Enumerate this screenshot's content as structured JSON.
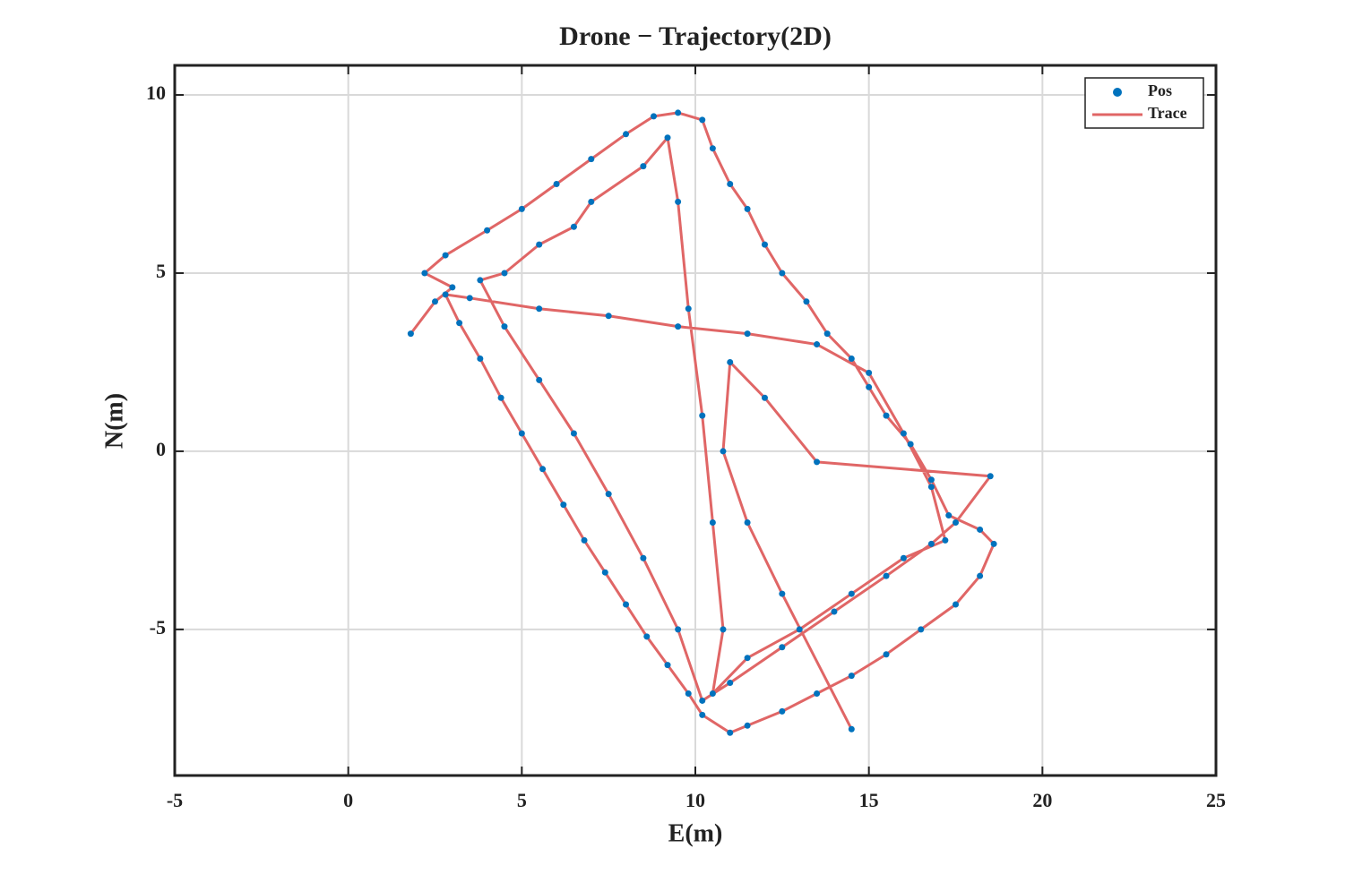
{
  "chart_data": {
    "type": "scatter",
    "title": "Drone − Trajectory(2D)",
    "x_label": "E(m)",
    "y_label": "N(m)",
    "xlim": [
      -5,
      25
    ],
    "ylim": [
      -9.1,
      10.83
    ],
    "xticks": [
      -5,
      0,
      5,
      10,
      15,
      20,
      25
    ],
    "yticks": [
      -5,
      0,
      5,
      10
    ],
    "grid": true,
    "legend": "upper right",
    "series": [
      {
        "name": "Pos",
        "color": "#0072bd"
      },
      {
        "name": "Trace",
        "color": "#e06666"
      }
    ],
    "x": [
      1.8,
      2.5,
      3.0,
      2.2,
      2.8,
      4.0,
      5.0,
      6.0,
      7.0,
      8.0,
      8.8,
      9.5,
      10.2,
      10.5,
      11.0,
      11.5,
      12.0,
      12.5,
      13.2,
      13.8,
      14.5,
      15.0,
      15.5,
      16.2,
      16.8,
      17.3,
      18.2,
      18.6,
      18.2,
      17.5,
      16.5,
      15.5,
      14.5,
      13.5,
      12.5,
      11.5,
      11.0,
      10.2,
      9.8,
      9.2,
      8.6,
      8.0,
      7.4,
      6.8,
      6.2,
      5.6,
      5.0,
      4.4,
      3.8,
      3.2,
      2.8,
      3.5,
      5.5,
      7.5,
      9.5,
      11.5,
      13.5,
      15.0,
      16.0,
      16.8,
      17.2,
      16.0,
      14.5,
      13.0,
      11.5,
      10.5,
      10.8,
      10.5,
      10.2,
      9.8,
      9.5,
      9.2,
      8.5,
      7.0,
      6.5,
      5.5,
      4.5,
      3.8,
      4.5,
      5.5,
      6.5,
      7.5,
      8.5,
      9.5,
      10.2,
      11.0,
      12.5,
      14.0,
      15.5,
      16.8,
      17.5,
      18.5,
      13.5,
      12.0,
      11.0,
      10.8,
      11.5,
      12.5,
      14.5
    ],
    "y": [
      3.3,
      4.2,
      4.6,
      5.0,
      5.5,
      6.2,
      6.8,
      7.5,
      8.2,
      8.9,
      9.4,
      9.5,
      9.3,
      8.5,
      7.5,
      6.8,
      5.8,
      5.0,
      4.2,
      3.3,
      2.6,
      1.8,
      1.0,
      0.2,
      -0.8,
      -1.8,
      -2.2,
      -2.6,
      -3.5,
      -4.3,
      -5.0,
      -5.7,
      -6.3,
      -6.8,
      -7.3,
      -7.7,
      -7.9,
      -7.4,
      -6.8,
      -6.0,
      -5.2,
      -4.3,
      -3.4,
      -2.5,
      -1.5,
      -0.5,
      0.5,
      1.5,
      2.6,
      3.6,
      4.4,
      4.3,
      4.0,
      3.8,
      3.5,
      3.3,
      3.0,
      2.2,
      0.5,
      -1.0,
      -2.5,
      -3.0,
      -4.0,
      -5.0,
      -5.8,
      -6.8,
      -5.0,
      -2.0,
      1.0,
      4.0,
      7.0,
      8.8,
      8.0,
      7.0,
      6.3,
      5.8,
      5.0,
      4.8,
      3.5,
      2.0,
      0.5,
      -1.2,
      -3.0,
      -5.0,
      -7.0,
      -6.5,
      -5.5,
      -4.5,
      -3.5,
      -2.6,
      -2.0,
      -0.7,
      -0.3,
      1.5,
      2.5,
      0.0,
      -2.0,
      -4.0,
      -7.8
    ]
  }
}
